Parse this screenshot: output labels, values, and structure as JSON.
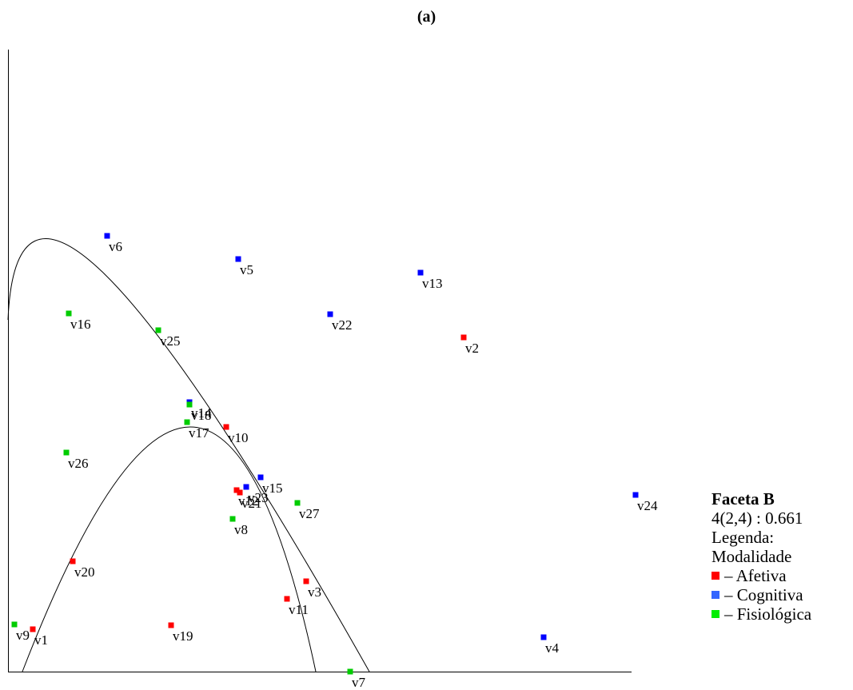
{
  "chart_data": {
    "type": "scatter",
    "title": "(a)",
    "xlabel": "",
    "ylabel": "",
    "grid": false,
    "legend_position": "right",
    "series": [
      {
        "name": "Afetiva",
        "color": "#ff0000",
        "points": [
          {
            "label": "v1",
            "x": 31,
            "y": 53
          },
          {
            "label": "v2",
            "x": 570,
            "y": 418
          },
          {
            "label": "v3",
            "x": 373,
            "y": 113
          },
          {
            "label": "v10",
            "x": 273,
            "y": 306
          },
          {
            "label": "v11",
            "x": 349,
            "y": 91
          },
          {
            "label": "v19",
            "x": 204,
            "y": 58
          },
          {
            "label": "v20",
            "x": 81,
            "y": 138
          },
          {
            "label": "v21",
            "x": 290,
            "y": 224
          },
          {
            "label": "v12",
            "x": 286,
            "y": 227
          }
        ]
      },
      {
        "name": "Cognitiva",
        "color": "#0000ff",
        "points": [
          {
            "label": "v4",
            "x": 670,
            "y": 43
          },
          {
            "label": "v5",
            "x": 288,
            "y": 516
          },
          {
            "label": "v6",
            "x": 124,
            "y": 545
          },
          {
            "label": "v13",
            "x": 516,
            "y": 499
          },
          {
            "label": "v14",
            "x": 227,
            "y": 337
          },
          {
            "label": "v15",
            "x": 316,
            "y": 243
          },
          {
            "label": "v22",
            "x": 403,
            "y": 447
          },
          {
            "label": "v23",
            "x": 298,
            "y": 231
          },
          {
            "label": "v24",
            "x": 785,
            "y": 221
          }
        ]
      },
      {
        "name": "Fisiológica",
        "color": "#00cc00",
        "points": [
          {
            "label": "v7",
            "x": 428,
            "y": 0
          },
          {
            "label": "v8",
            "x": 281,
            "y": 191
          },
          {
            "label": "v9",
            "x": 8,
            "y": 59
          },
          {
            "label": "v16",
            "x": 76,
            "y": 448
          },
          {
            "label": "v17",
            "x": 224,
            "y": 312
          },
          {
            "label": "v18",
            "x": 227,
            "y": 334
          },
          {
            "label": "v25",
            "x": 188,
            "y": 427
          },
          {
            "label": "v26",
            "x": 73,
            "y": 274
          },
          {
            "label": "v27",
            "x": 362,
            "y": 211
          }
        ]
      }
    ],
    "region_boundaries": [
      {
        "type": "arc",
        "x0": 18,
        "y0": 0,
        "cx": 228,
        "cy": 306,
        "x1": 385,
        "y1": 0
      },
      {
        "type": "arc",
        "x0": 0,
        "y0": 440,
        "cx": 120,
        "cy": 498,
        "x1": 452,
        "y1": 0
      }
    ],
    "xlim": [
      0,
      790
    ],
    "ylim": [
      0,
      780
    ]
  },
  "legend": {
    "facet_title": "Faceta B",
    "coefficient": "4(2,4) : 0.661",
    "legend_label": "Legenda:",
    "modality_label": "Modalidade",
    "items": [
      {
        "text": "– Afetiva",
        "color": "#ff0000"
      },
      {
        "text": "– Cognitiva",
        "color": "#3366ff"
      },
      {
        "text": "– Fisiológica",
        "color": "#00ee00"
      }
    ]
  }
}
